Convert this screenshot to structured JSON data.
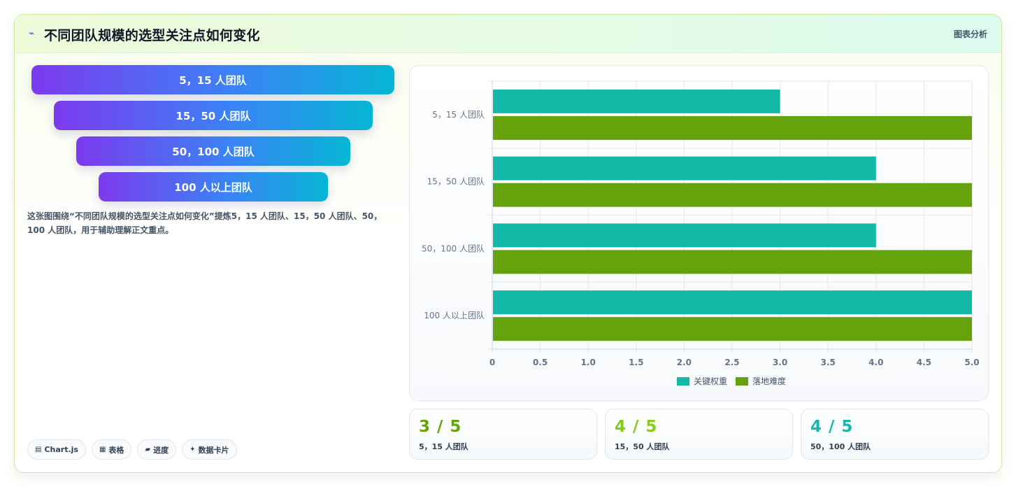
{
  "header": {
    "icon": "sparkle-icon",
    "title": "不同团队规模的选型关注点如何变化",
    "tag": "图表分析"
  },
  "funnel": [
    {
      "label": "5，15 人团队"
    },
    {
      "label": "15，50 人团队"
    },
    {
      "label": "50，100 人团队"
    },
    {
      "label": "100 人以上团队"
    }
  ],
  "description": "这张图围绕“不同团队规模的选型关注点如何变化”提炼5，15 人团队、15，50 人团队、50，100 人团队，用于辅助理解正文重点。",
  "chips": [
    {
      "icon": "chart-icon",
      "label": "Chart.js"
    },
    {
      "icon": "table-icon",
      "label": "表格"
    },
    {
      "icon": "progress-icon",
      "label": "进度"
    },
    {
      "icon": "data-card-icon",
      "label": "数据卡片"
    }
  ],
  "chart_data": {
    "type": "bar",
    "orientation": "horizontal",
    "categories": [
      "5，15 人团队",
      "15，50 人团队",
      "50，100 人团队",
      "100 人以上团队"
    ],
    "series": [
      {
        "name": "关键权重",
        "values": [
          3,
          4,
          4,
          5
        ],
        "color": "#14b8a6"
      },
      {
        "name": "落地难度",
        "values": [
          5,
          5,
          5,
          5
        ],
        "color": "#65a30d"
      }
    ],
    "xlim": [
      0,
      5
    ],
    "xticks": [
      "0",
      "0.5",
      "1.0",
      "1.5",
      "2.0",
      "2.5",
      "3.0",
      "3.5",
      "4.0",
      "4.5",
      "5.0"
    ],
    "grid": true,
    "legend": "bottom"
  },
  "stats": [
    {
      "value": "3 / 5",
      "label": "5，15 人团队",
      "color": "#65a30d"
    },
    {
      "value": "4 / 5",
      "label": "15，50 人团队",
      "color": "#84cc16"
    },
    {
      "value": "4 / 5",
      "label": "50，100 人团队",
      "color": "#14b8a6"
    }
  ]
}
